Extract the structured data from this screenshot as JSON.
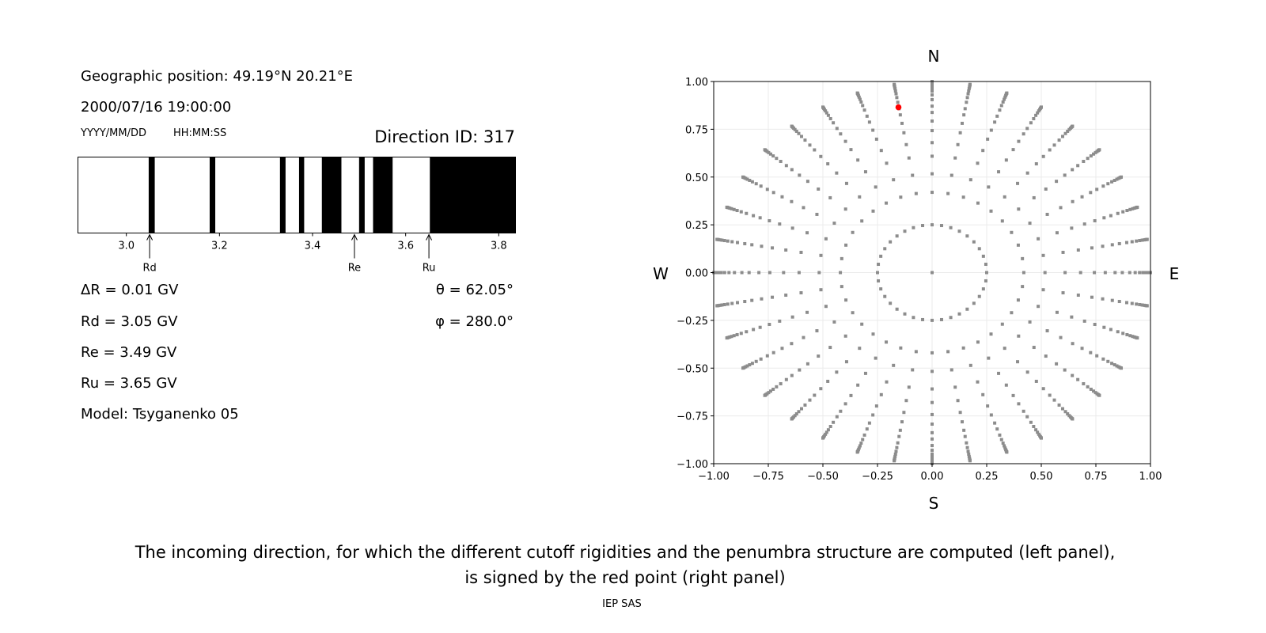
{
  "left_panel": {
    "position": "Geographic position: 49.19°N 20.21°E",
    "datetime": "2000/07/16 19:00:00",
    "date_format": "YYYY/MM/DD",
    "time_format": "HH:MM:SS",
    "direction_id": "Direction ID: 317",
    "delta_r": "ΔR = 0.01 GV",
    "rd": "Rd = 3.05 GV",
    "re": "Re = 3.49 GV",
    "ru": "Ru = 3.65 GV",
    "model": "Model: Tsyganenko 05",
    "theta": "θ = 62.05°",
    "phi": "φ = 280.0°"
  },
  "chart_data": [
    {
      "type": "penumbra-bar",
      "xlim": [
        2.896,
        3.836
      ],
      "xticks": [
        "3.0",
        "3.2",
        "3.4",
        "3.6",
        "3.8"
      ],
      "xtick_values": [
        3.0,
        3.2,
        3.4,
        3.6,
        3.8
      ],
      "forbidden_bands": [
        [
          3.048,
          3.061
        ],
        [
          3.179,
          3.191
        ],
        [
          3.33,
          3.342
        ],
        [
          3.371,
          3.382
        ],
        [
          3.42,
          3.462
        ],
        [
          3.5,
          3.512
        ],
        [
          3.53,
          3.572
        ],
        [
          3.652,
          3.836
        ]
      ],
      "markers": [
        {
          "label": "Rd",
          "value": 3.05
        },
        {
          "label": "Re",
          "value": 3.49
        },
        {
          "label": "Ru",
          "value": 3.65
        }
      ],
      "colors": {
        "forbidden": "#000000",
        "allowed": "#ffffff"
      }
    },
    {
      "type": "scatter",
      "xlim": [
        -1,
        1
      ],
      "ylim": [
        -1,
        1
      ],
      "grid": true,
      "ticks": [
        "−1.00",
        "−0.75",
        "−0.50",
        "−0.25",
        "0.00",
        "0.25",
        "0.50",
        "0.75",
        "1.00"
      ],
      "tick_values": [
        -1,
        -0.75,
        -0.5,
        -0.25,
        0,
        0.25,
        0.5,
        0.75,
        1
      ],
      "compass": {
        "north": "N",
        "south": "S",
        "west": "W",
        "east": "E"
      },
      "grid_directions_deg_step": 10,
      "grid_radii": [
        0.25,
        0.42,
        0.517,
        0.609,
        0.68,
        0.743,
        0.793,
        0.838,
        0.871,
        0.905,
        0.93,
        0.95,
        0.965,
        0.977,
        0.986,
        0.993,
        0.998,
        1.0
      ],
      "center_point": [
        0,
        0
      ],
      "selected_point": {
        "x": -0.154,
        "y": 0.865
      },
      "colors": {
        "grid_points": "#8c8c8c",
        "selected": "#ff0000"
      }
    }
  ],
  "caption": {
    "line1": "The incoming direction, for which the different cutoff rigidities and the penumbra structure are computed (left panel),",
    "line2": "is signed by the red point (right panel)",
    "credit": "IEP SAS"
  }
}
